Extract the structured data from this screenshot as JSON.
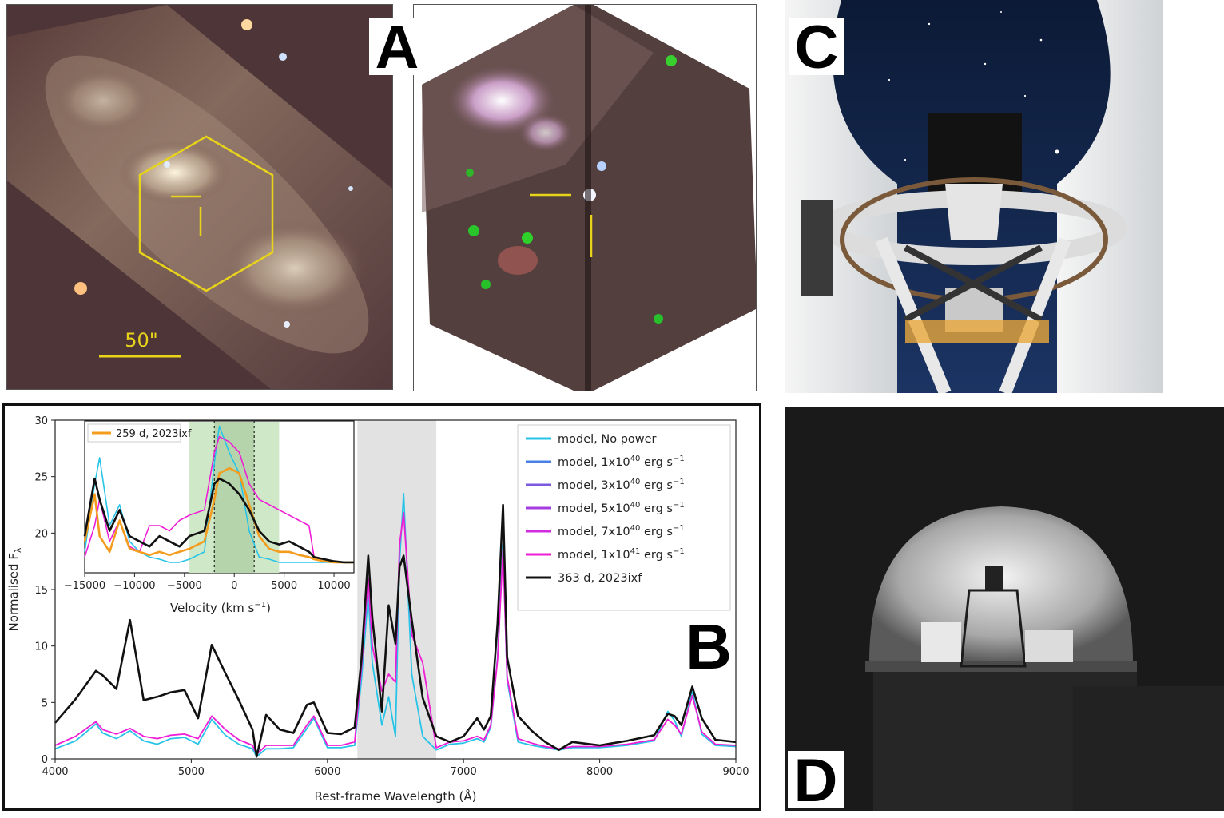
{
  "panel_labels": {
    "a": "A",
    "b": "B",
    "c": "C",
    "d": "D"
  },
  "panel_a": {
    "scale_bar_label": "50\""
  },
  "main_chart": {
    "ylabel": "Normalised F",
    "ylabel_sub": "λ",
    "xlabel": "Rest-frame Wavelength (Å)",
    "x_ticks": [
      "4000",
      "5000",
      "6000",
      "7000",
      "8000",
      "9000"
    ],
    "y_ticks": [
      "0",
      "5",
      "10",
      "15",
      "20",
      "25",
      "30"
    ]
  },
  "inset_chart": {
    "xlabel_prefix": "Velocity (km s",
    "xlabel_sup": "−1",
    "xlabel_suffix": ")",
    "legend_label": "259 d, 2023ixf",
    "x_ticks": [
      "−15000",
      "−10000",
      "−5000",
      "0",
      "5000",
      "10000"
    ]
  },
  "legend": [
    {
      "prefix": "model, No power",
      "sup": "",
      "suffix": "",
      "color": "#28c4e8"
    },
    {
      "prefix": "model, 1x10",
      "sup": "40",
      "suffix": " erg s",
      "sup2": "−1",
      "color": "#4a7fe6"
    },
    {
      "prefix": "model, 3x10",
      "sup": "40",
      "suffix": " erg s",
      "sup2": "−1",
      "color": "#7b5ae0"
    },
    {
      "prefix": "model, 5x10",
      "sup": "40",
      "suffix": " erg s",
      "sup2": "−1",
      "color": "#a63ce0"
    },
    {
      "prefix": "model, 7x10",
      "sup": "40",
      "suffix": " erg s",
      "sup2": "−1",
      "color": "#d02de0"
    },
    {
      "prefix": "model, 1x10",
      "sup": "41",
      "suffix": " erg s",
      "sup2": "−1",
      "color": "#ee1ed6"
    },
    {
      "prefix": "363 d, 2023ixf",
      "sup": "",
      "suffix": "",
      "color": "#111111"
    }
  ],
  "chart_data": [
    {
      "type": "line",
      "xlabel": "Rest-frame Wavelength (Å)",
      "ylabel": "Normalised Fλ",
      "xlim": [
        4000,
        9000
      ],
      "ylim": [
        0,
        30
      ],
      "shaded_region": [
        6220,
        6800
      ],
      "x": [
        4000,
        4150,
        4300,
        4350,
        4450,
        4550,
        4650,
        4750,
        4850,
        4950,
        5050,
        5150,
        5250,
        5350,
        5450,
        5480,
        5550,
        5650,
        5750,
        5850,
        5900,
        6000,
        6100,
        6200,
        6250,
        6300,
        6330,
        6400,
        6450,
        6500,
        6530,
        6560,
        6620,
        6700,
        6800,
        6900,
        7000,
        7100,
        7150,
        7200,
        7250,
        7290,
        7320,
        7400,
        7500,
        7600,
        7700,
        7800,
        8000,
        8200,
        8400,
        8500,
        8550,
        8600,
        8680,
        8750,
        8850,
        9000
      ],
      "series": [
        {
          "name": "363 d, 2023ixf",
          "color": "#111111",
          "values": [
            3.2,
            5.3,
            7.8,
            7.4,
            6.2,
            12.3,
            5.2,
            5.5,
            5.9,
            6.1,
            3.6,
            10.1,
            7.6,
            5.2,
            2.6,
            0.2,
            3.9,
            2.6,
            2.3,
            4.8,
            5.0,
            2.3,
            2.2,
            2.8,
            8.8,
            18.0,
            12.5,
            4.2,
            13.6,
            10.2,
            17.0,
            18.0,
            12.3,
            5.4,
            2.0,
            1.5,
            2.0,
            3.6,
            2.6,
            3.8,
            12.0,
            22.5,
            9.0,
            3.8,
            2.5,
            1.5,
            0.8,
            1.5,
            1.2,
            1.6,
            2.1,
            4.0,
            3.8,
            3.0,
            6.4,
            3.6,
            1.7,
            1.5
          ]
        },
        {
          "name": "model, 1x10^41 erg s^-1",
          "color": "#ee1ed6",
          "values": [
            1.2,
            2.0,
            3.3,
            2.6,
            2.2,
            2.7,
            2.0,
            1.8,
            2.1,
            2.2,
            1.8,
            3.8,
            2.6,
            1.7,
            1.2,
            0.4,
            1.2,
            1.2,
            1.2,
            3.0,
            3.8,
            1.2,
            1.2,
            1.5,
            8.0,
            16.0,
            10.0,
            6.0,
            7.5,
            6.8,
            19.0,
            21.8,
            11.0,
            8.5,
            1.0,
            1.5,
            1.6,
            2.0,
            1.7,
            3.0,
            8.8,
            18.5,
            7.3,
            1.8,
            1.4,
            1.1,
            0.9,
            1.1,
            1.1,
            1.3,
            1.7,
            3.5,
            3.0,
            2.2,
            5.6,
            2.4,
            1.3,
            1.2
          ]
        },
        {
          "name": "model, No power",
          "color": "#28c4e8",
          "values": [
            0.9,
            1.6,
            3.1,
            2.3,
            1.8,
            2.5,
            1.6,
            1.3,
            1.8,
            1.9,
            1.3,
            3.5,
            2.1,
            1.3,
            0.9,
            0.2,
            0.9,
            0.9,
            1.0,
            2.7,
            3.6,
            1.0,
            1.0,
            1.2,
            7.0,
            14.5,
            8.5,
            3.0,
            5.5,
            2.0,
            17.5,
            23.5,
            7.5,
            2.0,
            0.8,
            1.3,
            1.4,
            1.8,
            1.5,
            2.8,
            9.0,
            19.0,
            7.0,
            1.5,
            1.2,
            1.0,
            0.8,
            1.0,
            1.0,
            1.2,
            1.6,
            4.2,
            3.4,
            2.0,
            6.0,
            2.2,
            1.2,
            1.1
          ]
        }
      ]
    },
    {
      "type": "line",
      "xlabel": "Velocity (km s^-1)",
      "xlim": [
        -15000,
        12000
      ],
      "ylim": [
        0,
        30
      ],
      "shaded_regions": [
        [
          -4500,
          4500
        ]
      ],
      "dark_region": [
        -2000,
        2000
      ],
      "x": [
        -15000,
        -14000,
        -13500,
        -12500,
        -11500,
        -10500,
        -9500,
        -8500,
        -7500,
        -6500,
        -5500,
        -4500,
        -3000,
        -2000,
        -1500,
        -500,
        500,
        1500,
        2500,
        3500,
        4500,
        5500,
        6500,
        7500,
        8000,
        9000,
        10000,
        11000,
        12000
      ],
      "series": [
        {
          "name": "363 d, 2023ixf",
          "color": "#111111",
          "values": [
            19.0,
            24.5,
            22.5,
            19.5,
            21.5,
            19.0,
            18.5,
            18.0,
            19.0,
            18.5,
            18.0,
            19.0,
            19.5,
            24.0,
            24.5,
            24.0,
            23.0,
            21.5,
            19.5,
            18.5,
            18.2,
            18.5,
            18.0,
            17.5,
            17.0,
            16.8,
            16.6,
            16.5,
            16.5
          ]
        },
        {
          "name": "259 d, 2023ixf",
          "color": "#f39c1e",
          "values": [
            18.5,
            23.0,
            19.0,
            17.5,
            20.5,
            17.8,
            17.5,
            17.2,
            17.5,
            17.2,
            17.5,
            17.8,
            18.5,
            22.5,
            25.0,
            25.5,
            25.0,
            22.0,
            19.0,
            17.8,
            17.5,
            17.5,
            17.2,
            17.0,
            16.8,
            16.6,
            16.5,
            16.5,
            16.5
          ]
        },
        {
          "name": "model, 1x10^41 erg s^-1",
          "color": "#ee1ed6",
          "values": [
            17.0,
            20.0,
            22.5,
            18.5,
            20.5,
            18.0,
            17.5,
            20.0,
            20.0,
            19.5,
            20.5,
            21.0,
            21.5,
            27.0,
            28.5,
            28.0,
            27.0,
            24.0,
            22.5,
            22.0,
            21.5,
            21.0,
            20.5,
            20.0,
            17.0,
            16.8,
            16.6,
            16.5,
            16.5
          ]
        },
        {
          "name": "model, No power",
          "color": "#28c4e8",
          "values": [
            17.5,
            24.0,
            26.5,
            20.0,
            22.0,
            18.5,
            17.5,
            17.0,
            16.8,
            16.5,
            16.5,
            16.8,
            17.5,
            26.0,
            29.5,
            27.0,
            25.0,
            19.5,
            17.0,
            16.8,
            16.5,
            16.5,
            16.5,
            16.5,
            16.5,
            16.5,
            16.5,
            16.5,
            16.5
          ]
        }
      ]
    }
  ]
}
